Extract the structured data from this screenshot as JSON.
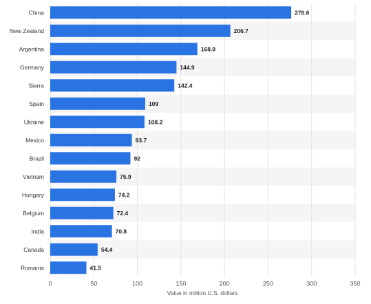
{
  "chart_data": {
    "type": "bar",
    "orientation": "horizontal",
    "categories": [
      "China",
      "New Zealand",
      "Argentina",
      "Germany",
      "Sierra",
      "Spain",
      "Ukraine",
      "Mexico",
      "Brazil",
      "Vietnam",
      "Hungary",
      "Belgium",
      "India",
      "Canada",
      "Romania"
    ],
    "values": [
      276.6,
      206.7,
      168.9,
      144.9,
      142.4,
      109,
      108.2,
      93.7,
      92,
      75.9,
      74.2,
      72.4,
      70.8,
      54.4,
      41.5
    ],
    "value_labels": [
      "276.6",
      "206.7",
      "168.9",
      "144.9",
      "142.4",
      "109",
      "108.2",
      "93.7",
      "92",
      "75.9",
      "74.2",
      "72.4",
      "70.8",
      "54.4",
      "41.5"
    ],
    "xlabel": "Value in million U.S. dollars",
    "ylabel": "",
    "xlim": [
      0,
      350
    ],
    "xticks": [
      0,
      50,
      100,
      150,
      200,
      250,
      300,
      350
    ],
    "grid": true,
    "legend": "none",
    "colors": {
      "bar": "#2a73e3",
      "band_alt": "#f5f5f5",
      "grid": "#e3e3e3",
      "label": "#333333",
      "value_label": "#222222",
      "axis_text": "#555555"
    }
  }
}
